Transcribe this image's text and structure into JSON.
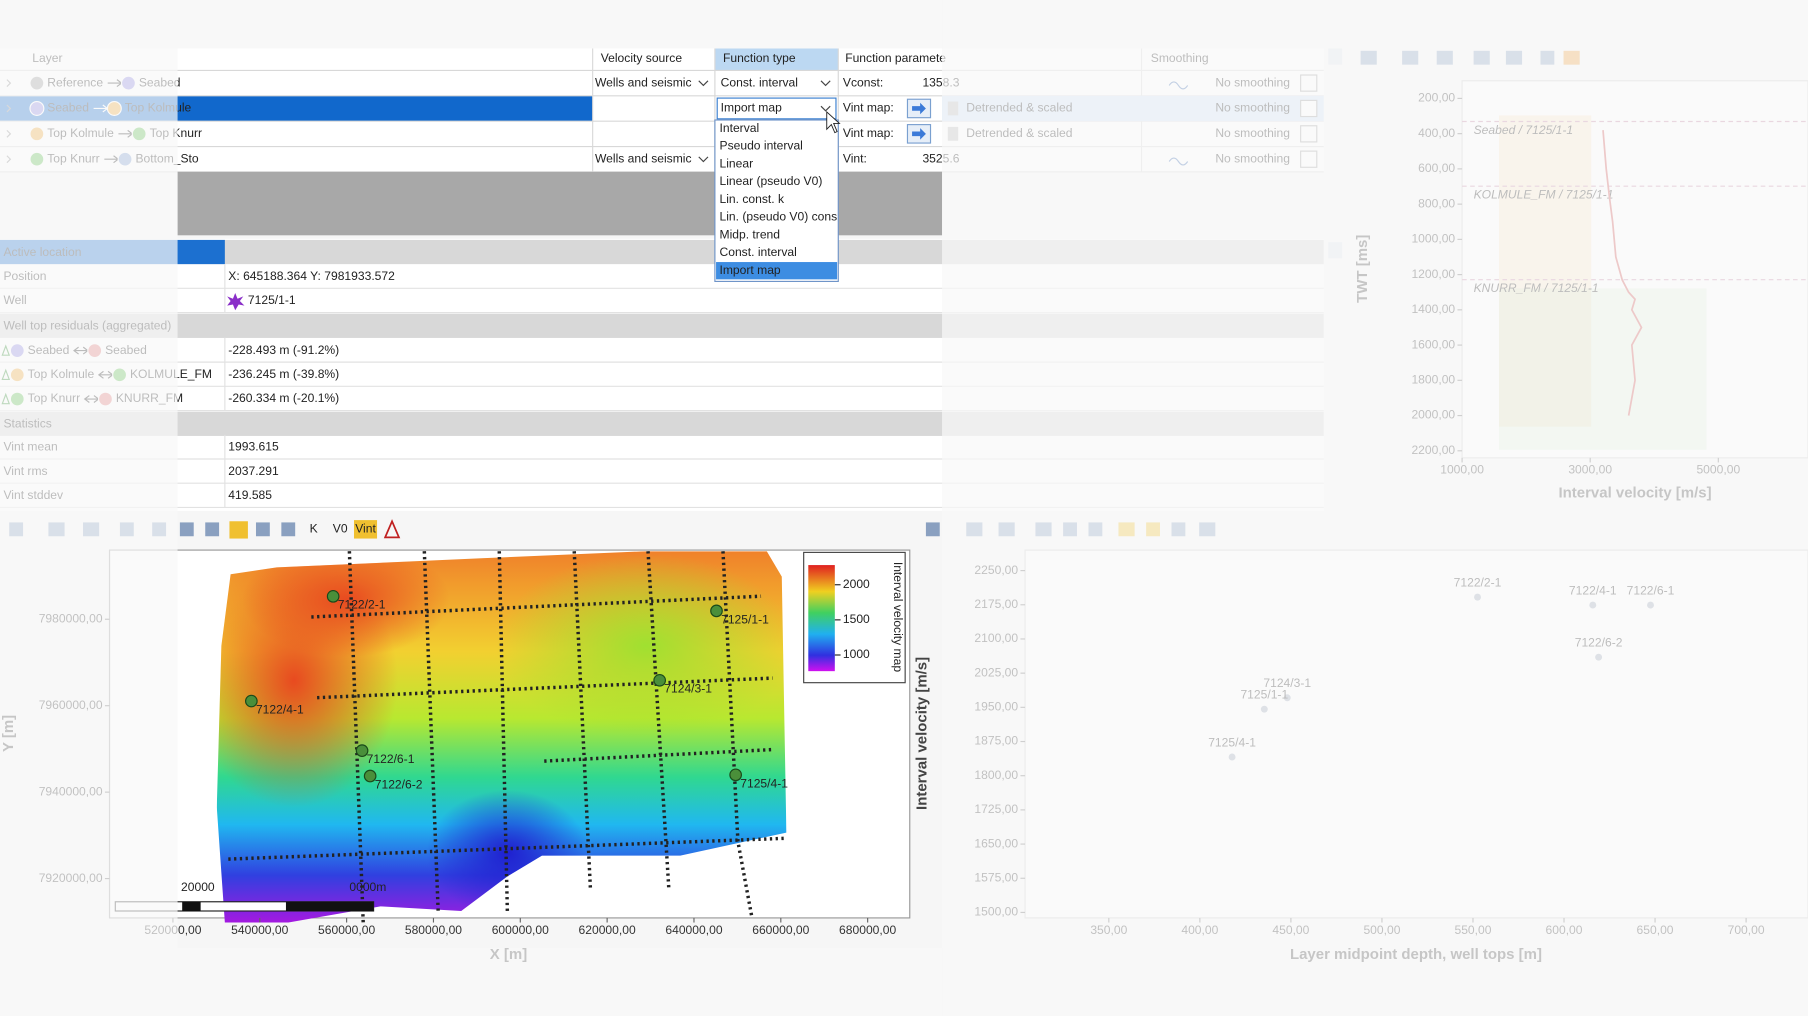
{
  "layer_table": {
    "headers": [
      "Layer",
      "Velocity source",
      "Function type",
      "Function paramete",
      "Smoothing"
    ],
    "rows": [
      {
        "from": "Reference",
        "to": "Seabed",
        "velocity_source": "Wells and seismic",
        "function_type": "Const. interval",
        "parameter_label": "Vconst:",
        "parameter_value": "1358.3",
        "smoothing": "No smoothing"
      },
      {
        "from": "Seabed",
        "to": "Top Kolmule",
        "function_type": "Import map",
        "parameter_label": "Vint map:",
        "method": "Detrended & scaled",
        "smoothing": "No smoothing"
      },
      {
        "from": "Top Kolmule",
        "to": "Top Knurr",
        "parameter_label": "Vint map:",
        "method": "Detrended & scaled",
        "smoothing": "No smoothing"
      },
      {
        "from": "Top Knurr",
        "to": "Bottom_Sto",
        "velocity_source": "Wells and seismic",
        "parameter_label": "Vint:",
        "parameter_value": "3525.6",
        "smoothing": "No smoothing"
      }
    ],
    "function_type_options": [
      "Interval",
      "Pseudo interval",
      "Linear",
      "Linear (pseudo V0)",
      "Lin. const. k",
      "Lin. (pseudo V0) cons",
      "Midp. trend",
      "Const. interval",
      "Import map"
    ]
  },
  "properties": {
    "active_location": "Active location",
    "position": {
      "label": "Position",
      "value": "X: 645188.364  Y: 7981933.572"
    },
    "well": {
      "label": "Well",
      "value": "7125/1-1"
    },
    "residuals_heading": "Well top residuals (aggregated)",
    "residuals": [
      {
        "from": "Seabed",
        "to": "Seabed",
        "value": "-228.493 m  (-91.2%)"
      },
      {
        "from": "Top Kolmule",
        "to": "KOLMULE_FM",
        "value": "-236.245 m  (-39.8%)"
      },
      {
        "from": "Top Knurr",
        "to": "KNURR_FM",
        "value": "-260.334 m  (-20.1%)"
      }
    ],
    "statistics_heading": "Statistics",
    "statistics": [
      {
        "label": "Vint mean",
        "value": "1993.615"
      },
      {
        "label": "Vint rms",
        "value": "2037.291"
      },
      {
        "label": "Vint stddev",
        "value": "419.585"
      }
    ]
  },
  "toolbar": {
    "items": [
      "K",
      "V0",
      "Vint"
    ]
  },
  "chart_data": [
    {
      "type": "line",
      "xlabel": "Interval velocity [m/s]",
      "ylabel": "TWT [ms]",
      "xlim": [
        1000,
        6400
      ],
      "ylim": [
        100,
        2240
      ],
      "y_inverted": true,
      "xticks": [
        {
          "value": 1000,
          "label": "1000,00"
        },
        {
          "value": 3000,
          "label": "3000,00"
        },
        {
          "value": 5000,
          "label": "5000,00"
        }
      ],
      "yticks": [
        {
          "value": 200,
          "label": "200,00"
        },
        {
          "value": 400,
          "label": "400,00"
        },
        {
          "value": 600,
          "label": "600,00"
        },
        {
          "value": 800,
          "label": "800,00"
        },
        {
          "value": 1000,
          "label": "1000,00"
        },
        {
          "value": 1200,
          "label": "1200,00"
        },
        {
          "value": 1400,
          "label": "1400,00"
        },
        {
          "value": 1600,
          "label": "1600,00"
        },
        {
          "value": 1800,
          "label": "1800,00"
        },
        {
          "value": 2000,
          "label": "2000,00"
        },
        {
          "value": 2200,
          "label": "2200,00"
        }
      ],
      "annotations": [
        {
          "text": "Seabed / 7125/1-1",
          "value": 331
        },
        {
          "text": "KOLMULE_FM / 7125/1-1",
          "value": 698
        },
        {
          "text": "KNURR_FM / 7125/1-1",
          "value": 1229
        }
      ],
      "series": [
        {
          "color": "#d05050",
          "x": [
            3200,
            3250,
            3300,
            3350,
            3400,
            3500,
            3600,
            3700,
            3650,
            3800,
            3650,
            3700,
            3600
          ],
          "values": [
            380,
            600,
            760,
            900,
            1100,
            1230,
            1300,
            1340,
            1400,
            1500,
            1600,
            1800,
            2000
          ]
        }
      ]
    },
    {
      "type": "map",
      "xlabel": "X [m]",
      "ylabel": "Y [m]",
      "xlim": [
        505400,
        689700
      ],
      "ylim": [
        7910900,
        7996000
      ],
      "xticks": [
        {
          "value": 520000,
          "label": "520000,00"
        },
        {
          "value": 540000,
          "label": "540000,00"
        },
        {
          "value": 560000,
          "label": "560000,00"
        },
        {
          "value": 580000,
          "label": "580000,00"
        },
        {
          "value": 600000,
          "label": "600000,00"
        },
        {
          "value": 620000,
          "label": "620000,00"
        },
        {
          "value": 640000,
          "label": "640000,00"
        },
        {
          "value": 660000,
          "label": "660000,00"
        },
        {
          "value": 680000,
          "label": "680000,00"
        }
      ],
      "yticks": [
        {
          "value": 7920000,
          "label": "7920000,00"
        },
        {
          "value": 7940000,
          "label": "7940000,00"
        },
        {
          "value": 7960000,
          "label": "7960000,00"
        },
        {
          "value": 7980000,
          "label": "7980000,00"
        }
      ],
      "colorbar": {
        "label": "Interval velocity map",
        "lim": [
          770,
          2280
        ],
        "ticks": [
          1000,
          1500,
          2000
        ]
      },
      "scale_bar": [
        "20000",
        "0000m"
      ],
      "series": [
        {
          "color": "#4a8f3a",
          "labels": [
            "7122/2-1",
            "7125/1-1",
            "7122/4-1",
            "7124/3-1",
            "7122/6-1",
            "7122/6-2",
            "7125/4-1"
          ],
          "x": [
            556900,
            645188,
            538060,
            632100,
            563560,
            565420,
            649600
          ],
          "values": [
            7985300,
            7981934,
            7961070,
            7965870,
            7949600,
            7943730,
            7944000
          ]
        }
      ]
    },
    {
      "type": "scatter",
      "xlabel": "Layer midpoint depth, well tops [m]",
      "ylabel": "Interval velocity [m/s]",
      "xlim": [
        304,
        734
      ],
      "ylim": [
        1488,
        2295
      ],
      "xticks": [
        {
          "value": 350,
          "label": "350,00"
        },
        {
          "value": 400,
          "label": "400,00"
        },
        {
          "value": 450,
          "label": "450,00"
        },
        {
          "value": 500,
          "label": "500,00"
        },
        {
          "value": 550,
          "label": "550,00"
        },
        {
          "value": 600,
          "label": "600,00"
        },
        {
          "value": 650,
          "label": "650,00"
        },
        {
          "value": 700,
          "label": "700,00"
        }
      ],
      "yticks": [
        {
          "value": 1500,
          "label": "1500,00"
        },
        {
          "value": 1575,
          "label": "1575,00"
        },
        {
          "value": 1650,
          "label": "1650,00"
        },
        {
          "value": 1725,
          "label": "1725,00"
        },
        {
          "value": 1800,
          "label": "1800,00"
        },
        {
          "value": 1875,
          "label": "1875,00"
        },
        {
          "value": 1950,
          "label": "1950,00"
        },
        {
          "value": 2025,
          "label": "2025,00"
        },
        {
          "value": 2100,
          "label": "2100,00"
        },
        {
          "value": 2175,
          "label": "2175,00"
        },
        {
          "value": 2250,
          "label": "2250,00"
        }
      ],
      "series": [
        {
          "color": "#9aa6b8",
          "labels": [
            "7122/2-1",
            "7122/4-1",
            "7122/6-1",
            "7122/6-2",
            "7124/3-1",
            "7125/1-1",
            "7125/4-1"
          ],
          "x": [
            552.5,
            615.8,
            647.5,
            619,
            448,
            435.4,
            417.7
          ],
          "values": [
            2191.8,
            2174.3,
            2174.3,
            2060,
            1971,
            1946,
            1841
          ]
        }
      ]
    }
  ]
}
